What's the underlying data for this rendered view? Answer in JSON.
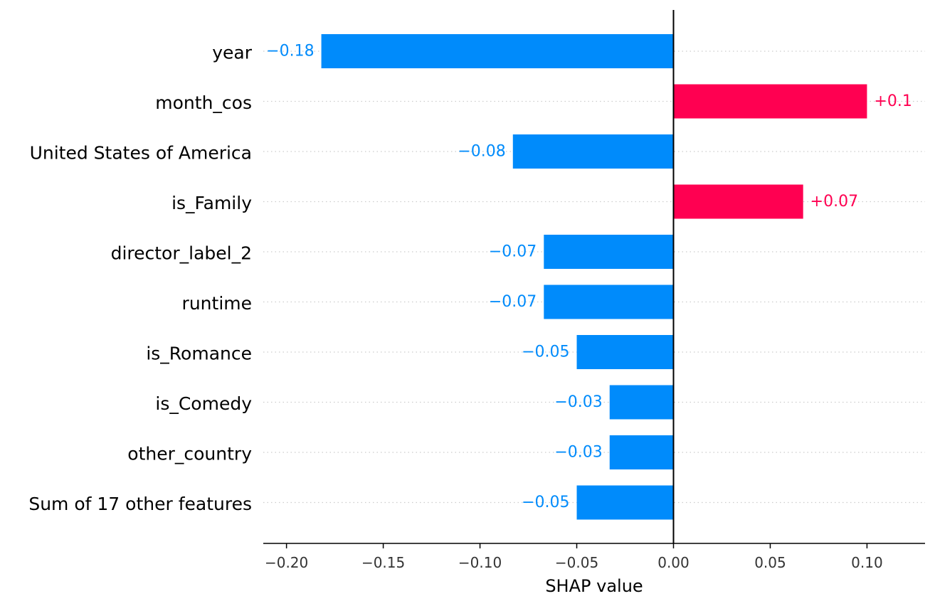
{
  "chart_data": {
    "type": "bar",
    "orientation": "horizontal",
    "title": "",
    "xlabel": "SHAP value",
    "ylabel": "",
    "xlim": [
      -0.212,
      0.13
    ],
    "grid": false,
    "categories": [
      "year",
      "month_cos",
      "United States of America",
      "is_Family",
      "director_label_2",
      "runtime",
      "is_Romance",
      "is_Comedy",
      "other_country",
      "Sum of 17 other features"
    ],
    "values": [
      -0.182,
      0.1,
      -0.083,
      0.067,
      -0.067,
      -0.067,
      -0.05,
      -0.033,
      -0.033,
      -0.05
    ],
    "value_labels": [
      "−0.18",
      "+0.1",
      "−0.08",
      "+0.07",
      "−0.07",
      "−0.07",
      "−0.05",
      "−0.03",
      "−0.03",
      "−0.05"
    ],
    "x_ticks": [
      -0.2,
      -0.15,
      -0.1,
      -0.05,
      0.0,
      0.05,
      0.1
    ],
    "x_tick_labels": [
      "−0.20",
      "−0.15",
      "−0.10",
      "−0.05",
      "0.00",
      "0.05",
      "0.10"
    ],
    "colors": {
      "positive": "#ff0051",
      "negative": "#008bfb",
      "gridline": "#cccccc",
      "axis": "#000000"
    }
  }
}
